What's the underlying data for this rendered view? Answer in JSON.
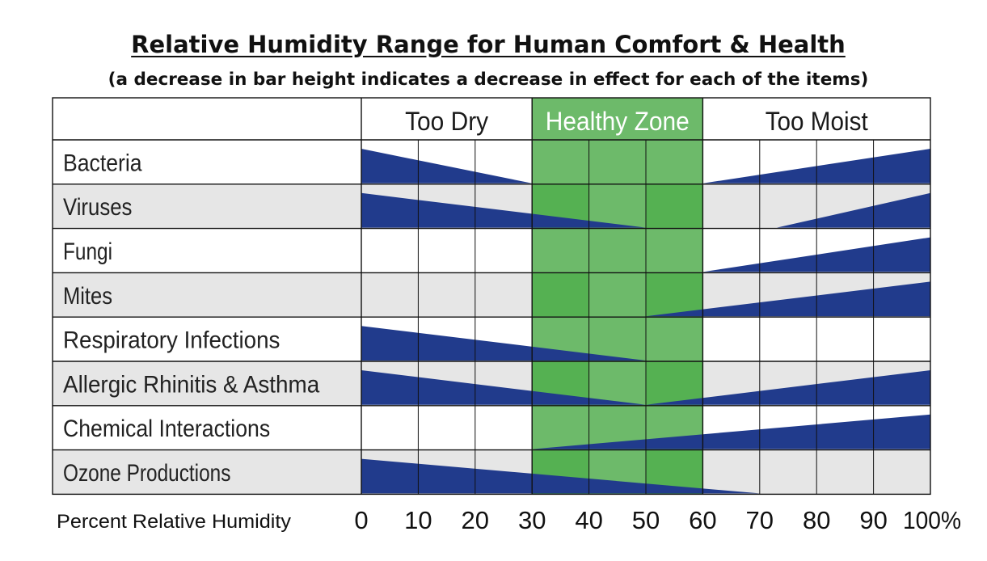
{
  "title": "Relative Humidity Range for Human Comfort & Health",
  "subtitle": "(a decrease in bar height indicates a decrease in effect for each of the items)",
  "colors": {
    "bar": "#213B8C",
    "zone_green_light": "#6DBA6A",
    "zone_green_dark": "#55B152",
    "row_alt": "#E6E6E6",
    "grid": "#111111"
  },
  "chart_data": {
    "type": "area",
    "title": "Relative Humidity Range for Human Comfort & Health",
    "subtitle": "(a decrease in bar height indicates a decrease in effect for each of the items)",
    "xlabel": "Percent Relative Humidity",
    "x_ticks": [
      "0",
      "10",
      "20",
      "30",
      "40",
      "50",
      "60",
      "70",
      "80",
      "90",
      "100%"
    ],
    "xlim": [
      0,
      100
    ],
    "zones": [
      {
        "label": "Too Dry",
        "start": 0,
        "end": 30
      },
      {
        "label": "Healthy Zone",
        "start": 30,
        "end": 60
      },
      {
        "label": "Too Moist",
        "start": 60,
        "end": 100
      }
    ],
    "items": [
      {
        "name": "Bacteria",
        "bars": [
          {
            "from": 0,
            "to": 30,
            "decreasing": true
          },
          {
            "from": 60,
            "to": 100,
            "decreasing": false
          }
        ]
      },
      {
        "name": "Viruses",
        "bars": [
          {
            "from": 0,
            "to": 50,
            "decreasing": true
          },
          {
            "from": 73,
            "to": 100,
            "decreasing": false
          }
        ]
      },
      {
        "name": "Fungi",
        "bars": [
          {
            "from": 60,
            "to": 100,
            "decreasing": false
          }
        ]
      },
      {
        "name": "Mites",
        "bars": [
          {
            "from": 50,
            "to": 100,
            "decreasing": false
          }
        ]
      },
      {
        "name": "Respiratory Infections",
        "bars": [
          {
            "from": 0,
            "to": 50,
            "decreasing": true
          }
        ]
      },
      {
        "name": "Allergic Rhinitis & Asthma",
        "bars": [
          {
            "from": 0,
            "to": 50,
            "decreasing": true
          },
          {
            "from": 50,
            "to": 100,
            "decreasing": false
          }
        ]
      },
      {
        "name": "Chemical Interactions",
        "bars": [
          {
            "from": 30,
            "to": 100,
            "decreasing": false
          }
        ]
      },
      {
        "name": "Ozone Productions",
        "bars": [
          {
            "from": 0,
            "to": 70,
            "decreasing": true
          }
        ]
      }
    ]
  }
}
